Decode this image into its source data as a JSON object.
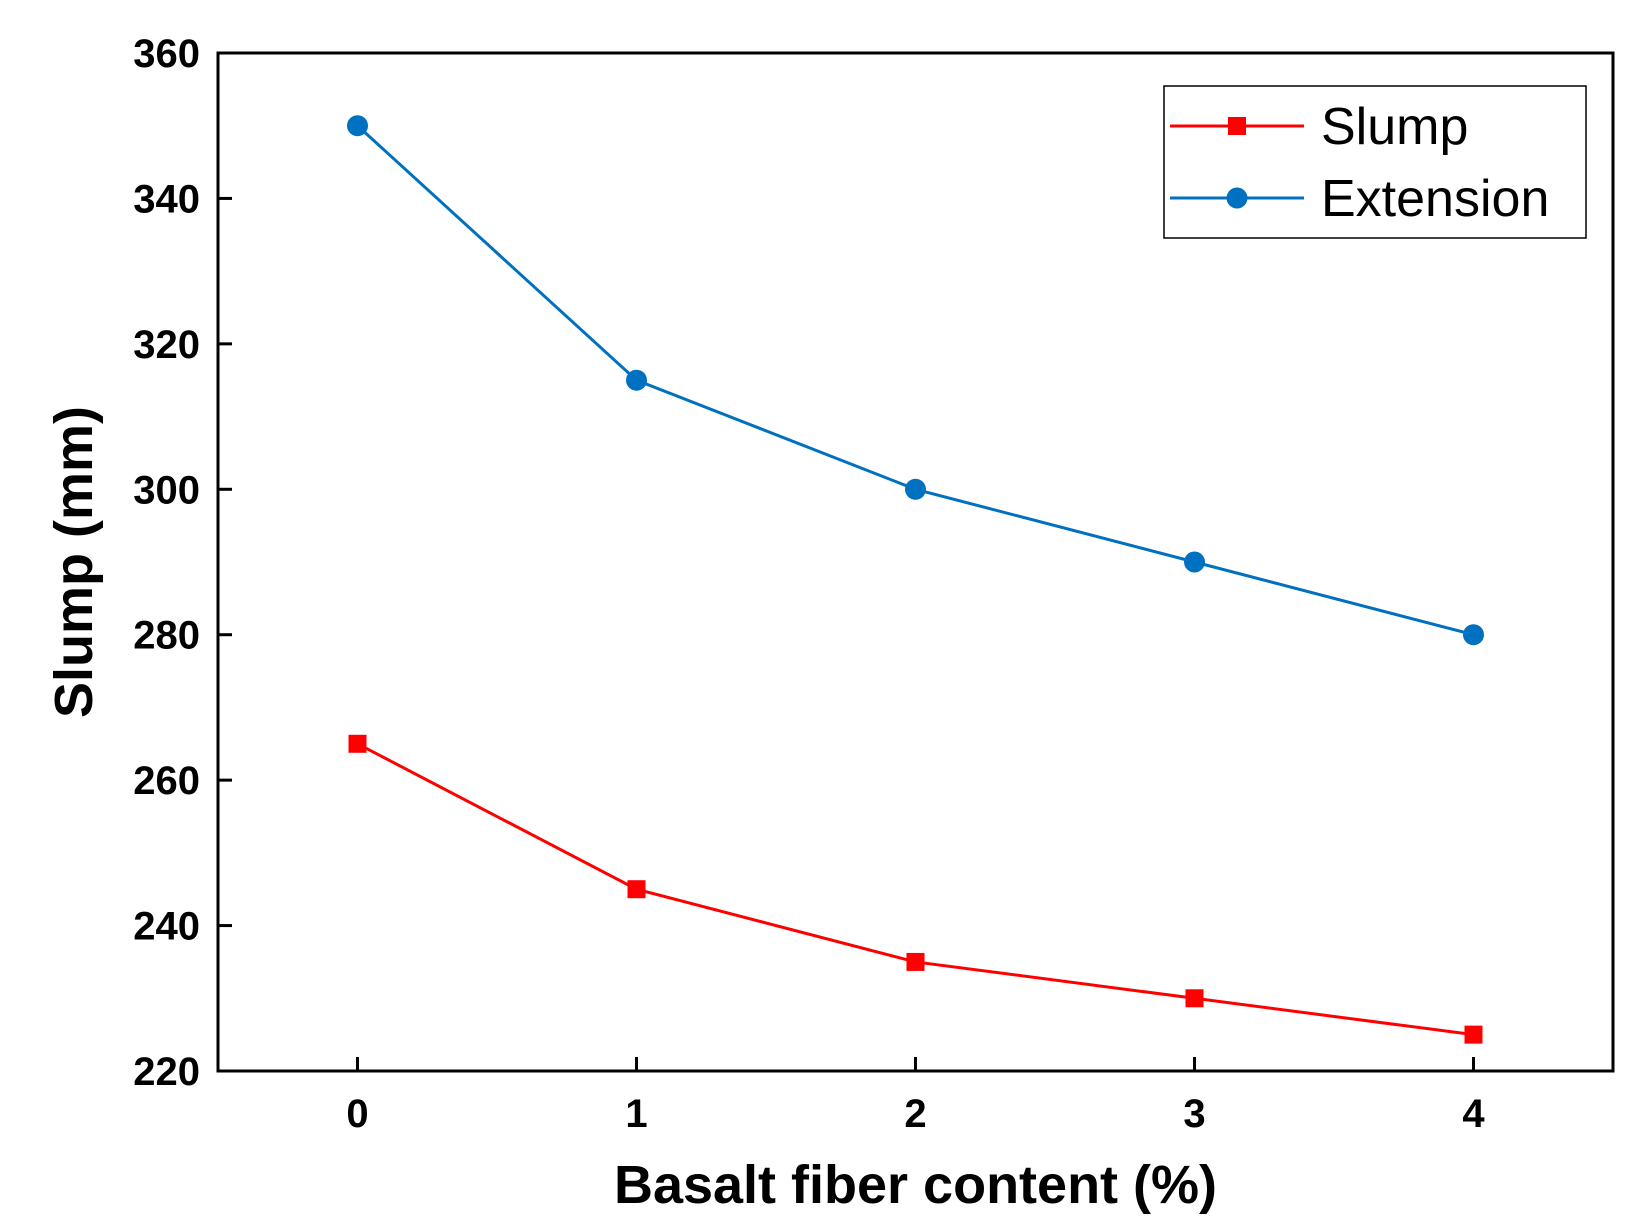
{
  "chart_data": {
    "type": "line",
    "title": "",
    "xlabel": "Basalt fiber content (%)",
    "ylabel": "Slump (mm)",
    "x": [
      0,
      1,
      2,
      3,
      4
    ],
    "xlim": [
      -0.5,
      4.5
    ],
    "ylim": [
      220,
      360
    ],
    "xticks": [
      0,
      1,
      2,
      3,
      4
    ],
    "yticks": [
      220,
      240,
      260,
      280,
      300,
      320,
      340,
      360
    ],
    "grid": false,
    "legend_position": "top-right",
    "series": [
      {
        "name": "Slump",
        "color": "#ff0000",
        "marker": "square",
        "values": [
          265,
          245,
          235,
          230,
          225
        ]
      },
      {
        "name": "Extension",
        "color": "#0070c0",
        "marker": "circle",
        "values": [
          350,
          315,
          300,
          290,
          280
        ]
      }
    ]
  }
}
